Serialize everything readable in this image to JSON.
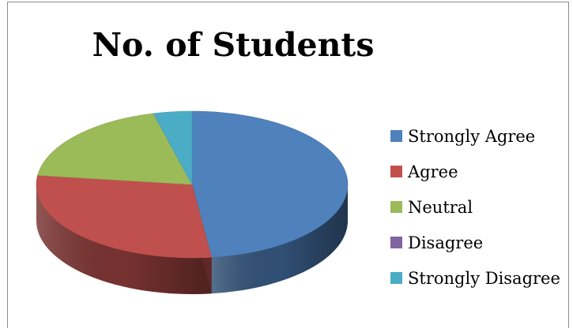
{
  "chart_data": {
    "type": "pie",
    "title": "No. of Students",
    "categories": [
      "Strongly Agree",
      "Agree",
      "Neutral",
      "Disagree",
      "Strongly Disagree"
    ],
    "values": [
      48,
      29,
      19,
      0,
      4
    ],
    "colors": [
      "#4f81bd",
      "#c0504d",
      "#9bbb59",
      "#8064a2",
      "#4bacc6"
    ],
    "three_d": true,
    "legend_position": "right"
  }
}
